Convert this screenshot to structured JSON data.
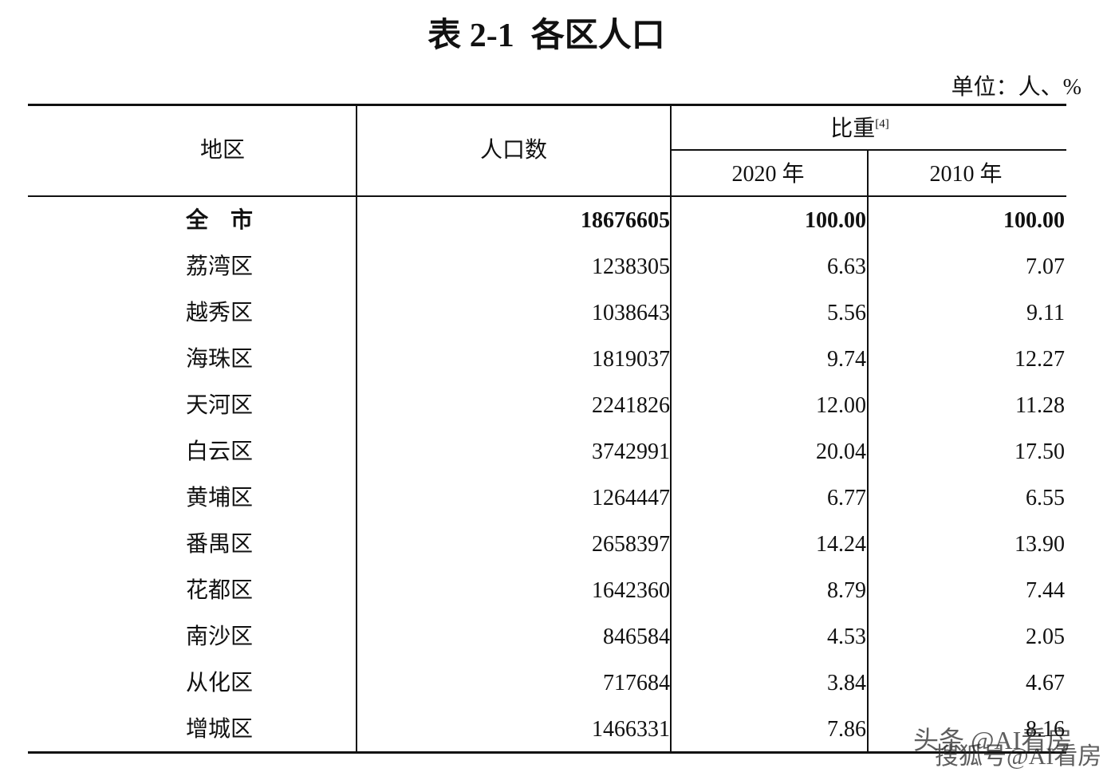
{
  "title": "表 2-1  各区人口",
  "unit": "单位：人、%",
  "header": {
    "region": "地区",
    "population": "人口数",
    "share": "比重",
    "share_note": "[4]",
    "year_2020": "2020 年",
    "year_2010": "2010 年"
  },
  "table": {
    "rows": [
      [
        "全　市",
        "18676605",
        "100.00",
        "100.00"
      ],
      [
        "荔湾区",
        "1238305",
        "6.63",
        "7.07"
      ],
      [
        "越秀区",
        "1038643",
        "5.56",
        "9.11"
      ],
      [
        "海珠区",
        "1819037",
        "9.74",
        "12.27"
      ],
      [
        "天河区",
        "2241826",
        "12.00",
        "11.28"
      ],
      [
        "白云区",
        "3742991",
        "20.04",
        "17.50"
      ],
      [
        "黄埔区",
        "1264447",
        "6.77",
        "6.55"
      ],
      [
        "番禺区",
        "2658397",
        "14.24",
        "13.90"
      ],
      [
        "花都区",
        "1642360",
        "8.79",
        "7.44"
      ],
      [
        "南沙区",
        "846584",
        "4.53",
        "2.05"
      ],
      [
        "从化区",
        "717684",
        "3.84",
        "4.67"
      ],
      [
        "增城区",
        "1466331",
        "7.86",
        "8.16"
      ]
    ]
  },
  "watermark": {
    "line1": "头条 @AI看房",
    "line2": "搜狐号@AI看房"
  }
}
